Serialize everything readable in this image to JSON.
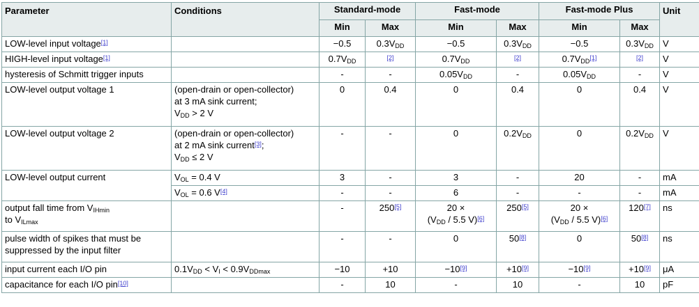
{
  "colors": {
    "border": "#84a5a5",
    "header_bg": "#e7eded",
    "footnote_link": "#3e3ecd",
    "text": "#000000"
  },
  "table": {
    "header": {
      "parameter": "Parameter",
      "conditions": "Conditions",
      "groups": [
        "Standard-mode",
        "Fast-mode",
        "Fast-mode Plus"
      ],
      "min_label": "Min",
      "max_label": "Max",
      "unit": "Unit"
    },
    "rows": [
      {
        "parameter": "LOW-level input voltage^[1]^",
        "conditions": "",
        "values": [
          "−0.5",
          "0.3V~DD~",
          "−0.5",
          "0.3V~DD~",
          "−0.5",
          "0.3V~DD~"
        ],
        "unit": "V",
        "lines": 1
      },
      {
        "parameter": "HIGH-level input voltage^[1]^",
        "conditions": "",
        "values": [
          "0.7V~DD~",
          "^[2]^",
          "0.7V~DD~",
          "^[2]^",
          "0.7V~DD~^[1]^",
          "^[2]^"
        ],
        "unit": "V",
        "lines": 1
      },
      {
        "parameter": "hysteresis of Schmitt trigger inputs",
        "conditions": "",
        "values": [
          "-",
          "-",
          "0.05V~DD~",
          "-",
          "0.05V~DD~",
          "-"
        ],
        "unit": "V",
        "lines": 1
      },
      {
        "parameter": "LOW-level output voltage 1",
        "conditions": "(open-drain or open-collector)\nat 3 mA sink current;\nV~DD~ > 2 V",
        "values": [
          "0",
          "0.4",
          "0",
          "0.4",
          "0",
          "0.4"
        ],
        "unit": "V",
        "lines": 3
      },
      {
        "parameter": "LOW-level output voltage 2",
        "conditions": "(open-drain or open-collector)\nat 2 mA sink current^[3]^;\nV~DD~ ≤ 2 V",
        "values": [
          "-",
          "-",
          "0",
          "0.2V~DD~",
          "0",
          "0.2V~DD~"
        ],
        "unit": "V",
        "lines": 3
      },
      {
        "parameter": "LOW-level output current",
        "parameter_rowspan": 2,
        "conditions": "V~OL~ = 0.4 V",
        "values": [
          "3",
          "-",
          "3",
          "-",
          "20",
          "-"
        ],
        "unit": "mA",
        "lines": 1
      },
      {
        "conditions": "V~OL~ = 0.6 V^[4]^",
        "values": [
          "-",
          "-",
          "6",
          "-",
          "-",
          "-"
        ],
        "unit": "mA",
        "lines": 1
      },
      {
        "parameter": "output fall time from V~IHmin~\nto V~ILmax~",
        "conditions": "",
        "values": [
          "-",
          "250^[5]^",
          "20 ×\n(V~DD~ / 5.5 V)^[6]^",
          "250^[5]^",
          "20 ×\n(V~DD~ / 5.5 V)^[6]^",
          "120^[7]^"
        ],
        "unit": "ns",
        "lines": 2
      },
      {
        "parameter": "pulse width of spikes that must be\nsuppressed by the input filter",
        "conditions": "",
        "values": [
          "-",
          "-",
          "0",
          "50^[8]^",
          "0",
          "50^[8]^"
        ],
        "unit": "ns",
        "lines": 2
      },
      {
        "parameter": "input current each I/O pin",
        "conditions": "0.1V~DD~ < V~I~ < 0.9V~DDmax~",
        "values": [
          "−10",
          "+10",
          "−10^[9]^",
          "+10^[9]^",
          "−10^[9]^",
          "+10^[9]^"
        ],
        "unit": "μA",
        "lines": 1
      },
      {
        "parameter": "capacitance for each I/O pin^[10]^",
        "conditions": "",
        "values": [
          "-",
          "10",
          "-",
          "10",
          "-",
          "10"
        ],
        "unit": "pF",
        "lines": 1
      }
    ]
  }
}
